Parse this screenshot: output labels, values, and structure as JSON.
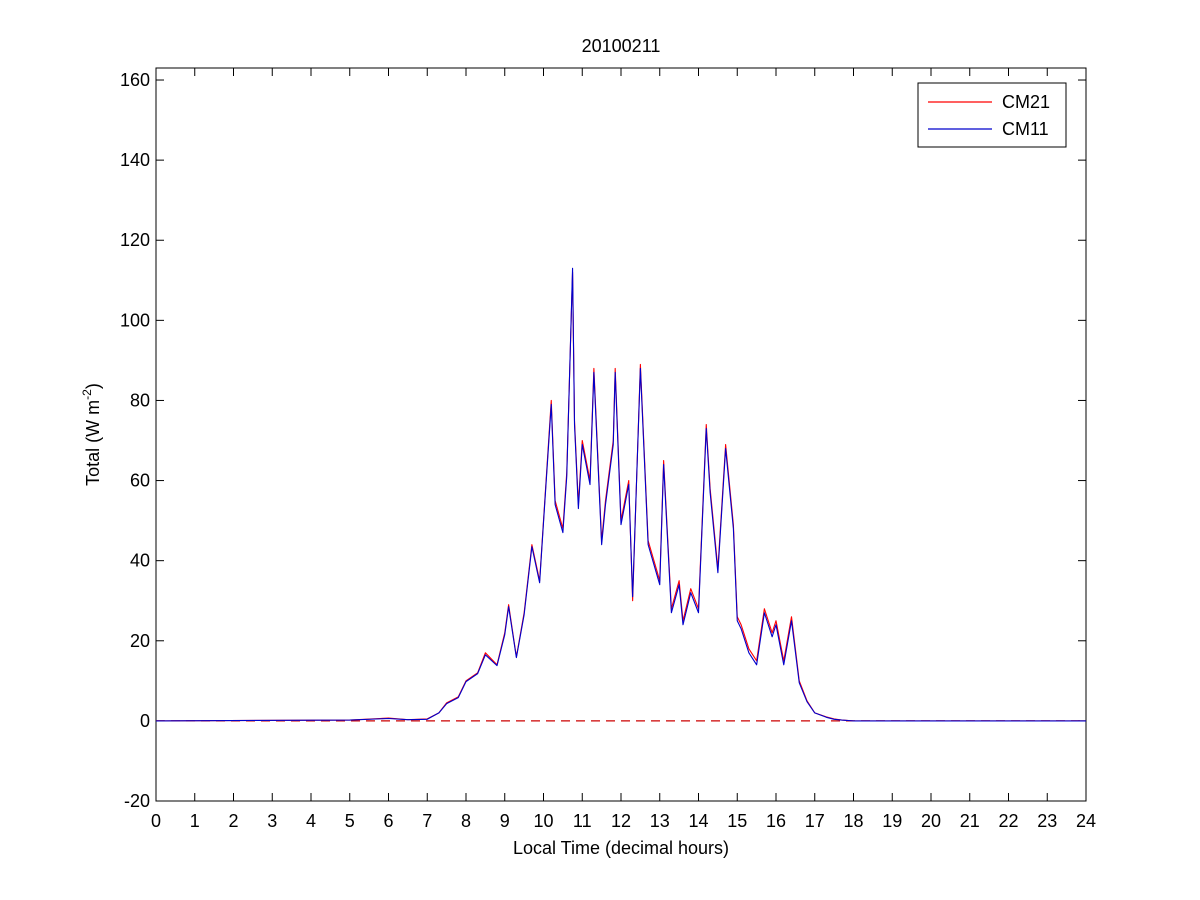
{
  "chart_data": {
    "type": "line",
    "title": "20100211",
    "xlabel": "Local Time (decimal hours)",
    "ylabel": {
      "text": "Total (W m",
      "superscript": "-2",
      "suffix": ")"
    },
    "xlim": [
      0,
      24
    ],
    "ylim": [
      -20,
      163
    ],
    "xticks": [
      0,
      1,
      2,
      3,
      4,
      5,
      6,
      7,
      8,
      9,
      10,
      11,
      12,
      13,
      14,
      15,
      16,
      17,
      18,
      19,
      20,
      21,
      22,
      23,
      24
    ],
    "yticks": [
      -20,
      0,
      20,
      40,
      60,
      80,
      100,
      120,
      140,
      160
    ],
    "grid": false,
    "legend_position": "top-right",
    "reference_line": {
      "y": 0,
      "style": "dashed",
      "color": "#cc0000"
    },
    "series": [
      {
        "name": "CM21",
        "color": "#ff0000",
        "x": [
          0,
          5,
          6,
          6.5,
          7,
          7.3,
          7.5,
          7.8,
          8,
          8.3,
          8.5,
          8.8,
          9,
          9.1,
          9.3,
          9.5,
          9.7,
          9.9,
          10,
          10.2,
          10.3,
          10.5,
          10.6,
          10.75,
          10.8,
          10.9,
          11,
          11.2,
          11.3,
          11.5,
          11.6,
          11.8,
          11.85,
          12,
          12.2,
          12.3,
          12.5,
          12.7,
          13,
          13.1,
          13.3,
          13.5,
          13.6,
          13.8,
          14,
          14.2,
          14.3,
          14.5,
          14.7,
          14.9,
          15,
          15.1,
          15.3,
          15.5,
          15.7,
          15.9,
          16,
          16.2,
          16.4,
          16.6,
          16.8,
          17,
          17.3,
          17.5,
          17.7,
          18,
          20,
          22,
          24
        ],
        "y": [
          0,
          0.2,
          0.7,
          0.3,
          0.5,
          2,
          4.5,
          6,
          10,
          12,
          17,
          14,
          22,
          29,
          16,
          27,
          44,
          35,
          50,
          80,
          55,
          48,
          62,
          112,
          75,
          54,
          70,
          60,
          88,
          45,
          55,
          70,
          88,
          50,
          60,
          30,
          89,
          45,
          35,
          65,
          28,
          35,
          25,
          33,
          28,
          74,
          58,
          38,
          69,
          49,
          26,
          24,
          18,
          15,
          28,
          22,
          25,
          15,
          26,
          10,
          5,
          2,
          1,
          0.5,
          0.2,
          0,
          0,
          0,
          0
        ]
      },
      {
        "name": "CM11",
        "color": "#0000cc",
        "x": [
          0,
          5,
          6,
          6.5,
          7,
          7.3,
          7.5,
          7.8,
          8,
          8.3,
          8.5,
          8.8,
          9,
          9.1,
          9.3,
          9.5,
          9.7,
          9.9,
          10,
          10.2,
          10.3,
          10.5,
          10.6,
          10.75,
          10.8,
          10.9,
          11,
          11.2,
          11.3,
          11.5,
          11.6,
          11.8,
          11.85,
          12,
          12.2,
          12.3,
          12.5,
          12.7,
          13,
          13.1,
          13.3,
          13.5,
          13.6,
          13.8,
          14,
          14.2,
          14.3,
          14.5,
          14.7,
          14.9,
          15,
          15.1,
          15.3,
          15.5,
          15.7,
          15.9,
          16,
          16.2,
          16.4,
          16.6,
          16.8,
          17,
          17.3,
          17.5,
          17.7,
          18,
          20,
          22,
          24
        ],
        "y": [
          0,
          0.2,
          0.6,
          0.3,
          0.4,
          2,
          4.3,
          5.8,
          9.8,
          11.8,
          16.5,
          13.8,
          21.5,
          28.5,
          15.8,
          26.5,
          43.5,
          34.5,
          49.5,
          79,
          54,
          47,
          61,
          113,
          74,
          53,
          69,
          59,
          87,
          44,
          54,
          69,
          87,
          49,
          59,
          31,
          88,
          44,
          34,
          64,
          27,
          34,
          24,
          32,
          27,
          73,
          57,
          37,
          68,
          48,
          25,
          23,
          17,
          14,
          27,
          21,
          24,
          14,
          25,
          9.5,
          4.8,
          2,
          0.9,
          0.4,
          0.2,
          0,
          0,
          0,
          0
        ]
      }
    ]
  }
}
